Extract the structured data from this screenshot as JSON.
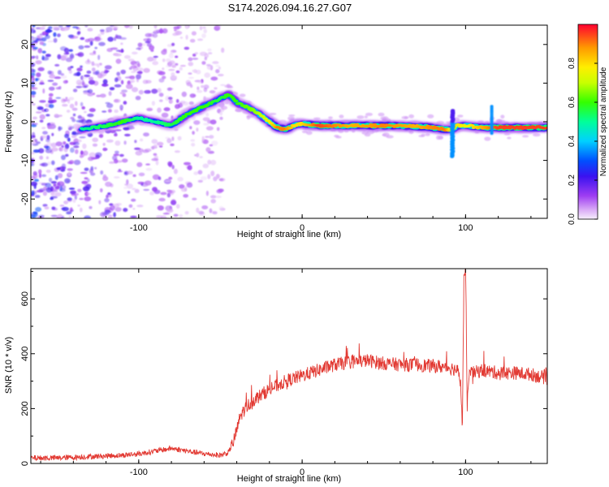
{
  "title": "S174.2026.094.16.27.G07",
  "colors": {
    "snr_line": "#e23a33",
    "axis": "#000000",
    "background": "#ffffff"
  },
  "chart_data": [
    {
      "type": "heatmap",
      "name": "spectrogram",
      "xlabel": "Height of straight line (km)",
      "ylabel": "Frequency (Hz)",
      "xlim": [
        -166,
        150
      ],
      "ylim": [
        -25,
        25
      ],
      "xticks": [
        -100,
        0,
        100
      ],
      "yticks": [
        -20,
        -10,
        0,
        10,
        20
      ],
      "xtick_labels": [
        "-100",
        "0",
        "100"
      ],
      "ytick_labels": [
        "-20",
        "-10",
        "0",
        "10",
        "20"
      ],
      "colorbar": {
        "label": "Normalized spectral amplitude",
        "range": [
          0,
          1
        ],
        "ticks": [
          0.0,
          0.2,
          0.4,
          0.6,
          0.8
        ],
        "tick_labels": [
          "0.0",
          "0.2",
          "0.4",
          "0.6",
          "0.8"
        ],
        "colormap": "rainbow (violet → red)"
      },
      "ridge": {
        "description": "dominant frequency trace vs height",
        "x": [
          -135,
          -120,
          -110,
          -100,
          -90,
          -80,
          -70,
          -60,
          -50,
          -45,
          -40,
          -30,
          -20,
          -15,
          -10,
          -5,
          0,
          10,
          30,
          50,
          70,
          80,
          88,
          92,
          95,
          100,
          110,
          120,
          150
        ],
        "y": [
          -2,
          -1,
          0,
          1,
          0,
          -1,
          2,
          4,
          6,
          7,
          5,
          3,
          0,
          -1.5,
          -2,
          -1,
          -0.5,
          -1,
          -1,
          -1,
          -1.2,
          -1.5,
          -2,
          -2,
          -1,
          -1,
          -1.5,
          -1.5,
          -1.5
        ],
        "amplitude": [
          0.5,
          0.55,
          0.6,
          0.5,
          0.5,
          0.55,
          0.6,
          0.6,
          0.55,
          0.6,
          0.6,
          0.65,
          0.75,
          0.9,
          0.9,
          0.8,
          0.8,
          0.95,
          0.85,
          0.9,
          0.85,
          0.9,
          0.9,
          0.7,
          0.8,
          0.75,
          0.85,
          0.95,
          0.95
        ]
      },
      "noise_region_x": [
        -166,
        -48
      ]
    },
    {
      "type": "line",
      "name": "snr",
      "xlabel": "Height of straight line (km)",
      "ylabel": "SNR (10 * v/v)",
      "xlim": [
        -166,
        150
      ],
      "ylim": [
        0,
        710
      ],
      "xticks": [
        -100,
        0,
        100
      ],
      "yticks": [
        0,
        200,
        400,
        600
      ],
      "xtick_labels": [
        "-100",
        "0",
        "100"
      ],
      "ytick_labels": [
        "0",
        "200",
        "400",
        "600"
      ],
      "series": [
        {
          "name": "SNR",
          "x": [
            -166,
            -150,
            -130,
            -110,
            -100,
            -90,
            -80,
            -70,
            -60,
            -50,
            -45,
            -42,
            -40,
            -38,
            -35,
            -30,
            -20,
            -10,
            0,
            10,
            20,
            30,
            40,
            50,
            60,
            70,
            80,
            90,
            95,
            97,
            98,
            99,
            100,
            101,
            102,
            105,
            110,
            120,
            130,
            140,
            150
          ],
          "y": [
            20,
            20,
            25,
            30,
            35,
            45,
            55,
            45,
            35,
            30,
            40,
            80,
            120,
            170,
            200,
            230,
            270,
            300,
            320,
            340,
            360,
            370,
            375,
            365,
            360,
            360,
            355,
            350,
            340,
            300,
            120,
            680,
            700,
            200,
            330,
            330,
            340,
            330,
            330,
            325,
            310
          ]
        }
      ],
      "noise_amplitude": 25
    }
  ]
}
